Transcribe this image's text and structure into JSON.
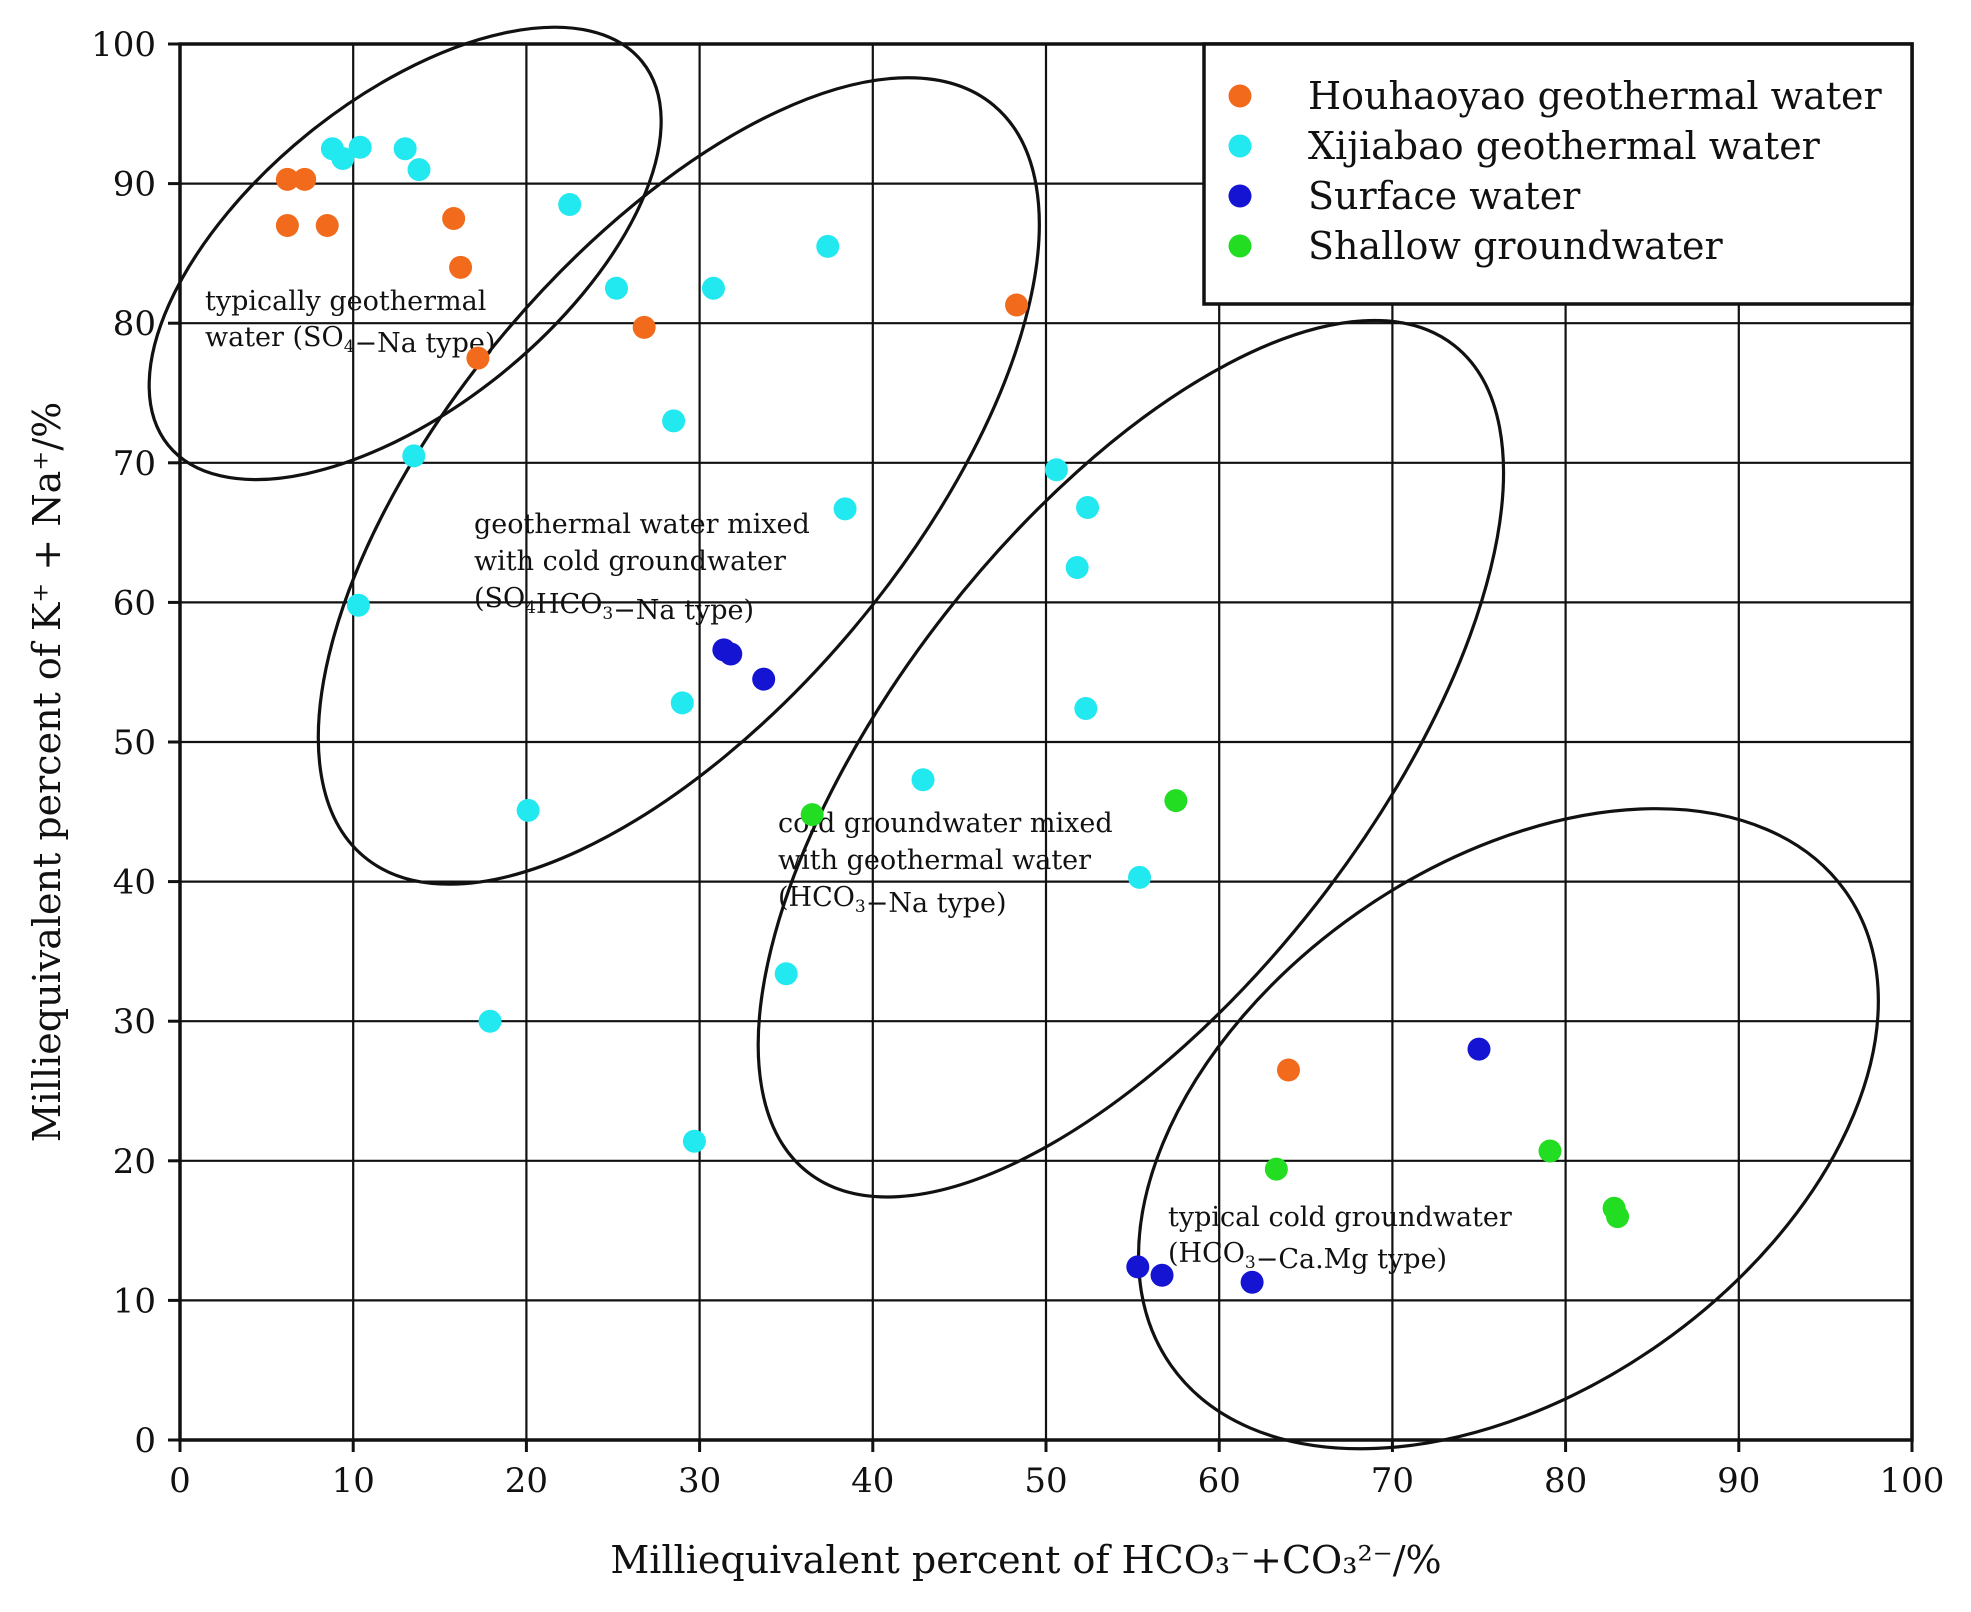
{
  "chart_data": {
    "type": "scatter",
    "xlabel": "Milliequivalent percent of HCO₃⁻+CO₃²⁻/%",
    "ylabel": "Milliequivalent percent of K⁺ + Na⁺/%",
    "xlim": [
      0,
      100
    ],
    "ylim": [
      0,
      100
    ],
    "x_ticks": [
      "0",
      "10",
      "20",
      "30",
      "40",
      "50",
      "60",
      "70",
      "80",
      "90",
      "100"
    ],
    "y_ticks": [
      "0",
      "10",
      "20",
      "30",
      "40",
      "50",
      "60",
      "70",
      "80",
      "90",
      "100"
    ],
    "grid": true,
    "legend_position": "top-right",
    "series": [
      {
        "name": "Houhaoyao geothermal water",
        "color": "#f26a1b",
        "points": [
          [
            6.2,
            90.3
          ],
          [
            7.2,
            90.3
          ],
          [
            6.2,
            87.0
          ],
          [
            8.5,
            87.0
          ],
          [
            15.8,
            87.5
          ],
          [
            16.2,
            84.0
          ],
          [
            17.2,
            77.5
          ],
          [
            26.8,
            79.7
          ],
          [
            48.3,
            81.3
          ],
          [
            64.0,
            26.5
          ]
        ]
      },
      {
        "name": "Xijiabao geothermal water",
        "color": "#22e8f0",
        "points": [
          [
            8.8,
            92.5
          ],
          [
            9.4,
            91.8
          ],
          [
            10.4,
            92.6
          ],
          [
            13.0,
            92.5
          ],
          [
            13.8,
            91.0
          ],
          [
            22.5,
            88.5
          ],
          [
            25.2,
            82.5
          ],
          [
            30.8,
            82.5
          ],
          [
            37.4,
            85.5
          ],
          [
            28.5,
            73.0
          ],
          [
            13.5,
            70.5
          ],
          [
            10.3,
            59.8
          ],
          [
            38.4,
            66.7
          ],
          [
            50.6,
            69.5
          ],
          [
            52.4,
            66.8
          ],
          [
            51.8,
            62.5
          ],
          [
            52.3,
            52.4
          ],
          [
            29.0,
            52.8
          ],
          [
            20.1,
            45.1
          ],
          [
            42.9,
            47.3
          ],
          [
            55.4,
            40.3
          ],
          [
            35.0,
            33.4
          ],
          [
            17.9,
            30.0
          ],
          [
            29.7,
            21.4
          ]
        ]
      },
      {
        "name": "Surface water",
        "color": "#1414d2",
        "points": [
          [
            31.4,
            56.6
          ],
          [
            31.8,
            56.3
          ],
          [
            33.7,
            54.5
          ],
          [
            75.0,
            28.0
          ],
          [
            55.3,
            12.4
          ],
          [
            56.7,
            11.8
          ],
          [
            61.9,
            11.3
          ]
        ]
      },
      {
        "name": "Shallow groundwater",
        "color": "#22dd22",
        "points": [
          [
            36.5,
            44.8
          ],
          [
            57.5,
            45.8
          ],
          [
            63.3,
            19.4
          ],
          [
            79.1,
            20.7
          ],
          [
            82.8,
            16.6
          ],
          [
            83.0,
            16.0
          ]
        ]
      }
    ],
    "annotations": [
      {
        "id": "zone1",
        "lines": [
          [
            "typically geothermal"
          ],
          [
            "water (SO",
            {
              "sub": "4"
            },
            "−Na type)"
          ]
        ]
      },
      {
        "id": "zone2",
        "lines": [
          [
            "geothermal water  mixed"
          ],
          [
            "with    cold  groundwater"
          ],
          [
            "(SO",
            {
              "sub": "4"
            },
            "HCO",
            {
              "sub": "3"
            },
            "−Na type)"
          ]
        ]
      },
      {
        "id": "zone3",
        "lines": [
          [
            "cold groundwater  mixed"
          ],
          [
            "with       geothermal    water"
          ],
          [
            "(HCO",
            {
              "sub": "3"
            },
            "−Na type)"
          ]
        ]
      },
      {
        "id": "zone4",
        "lines": [
          [
            "typical cold groundwater"
          ],
          [
            "(HCO",
            {
              "sub": "3"
            },
            "−Ca.Mg type)"
          ]
        ]
      }
    ]
  }
}
